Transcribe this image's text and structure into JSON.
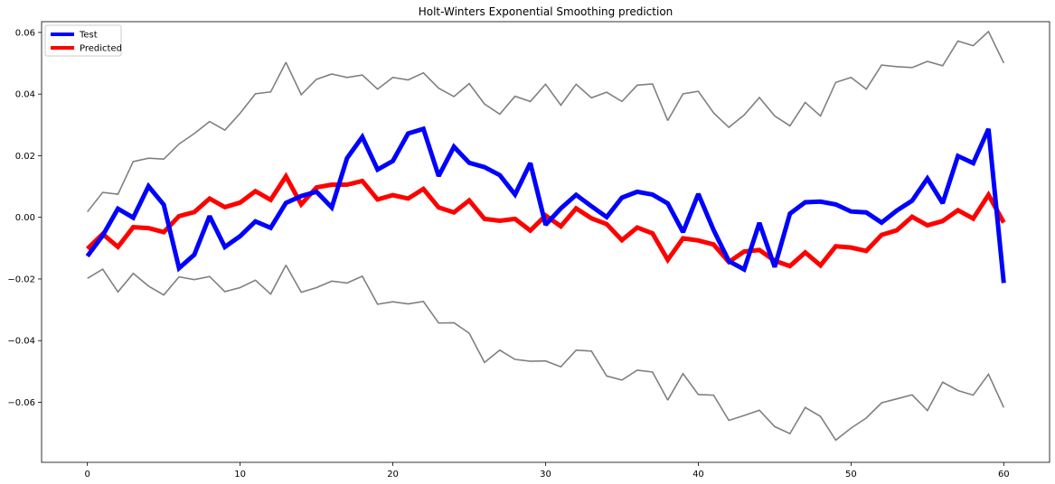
{
  "chart_data": {
    "type": "line",
    "title": "Holt-Winters Exponential Smoothing prediction",
    "xlabel": "",
    "ylabel": "",
    "xlim": [
      -3,
      63
    ],
    "ylim": [
      -0.0795,
      0.0635
    ],
    "xticks": [
      0,
      10,
      20,
      30,
      40,
      50,
      60
    ],
    "xtick_labels": [
      "0",
      "10",
      "20",
      "30",
      "40",
      "50",
      "60"
    ],
    "yticks": [
      -0.06,
      -0.04,
      -0.02,
      0.0,
      0.02,
      0.04,
      0.06
    ],
    "ytick_labels": [
      "−0.06",
      "−0.04",
      "−0.02",
      "0.00",
      "0.02",
      "0.04",
      "0.06"
    ],
    "grid": false,
    "legend": {
      "position": "upper-left",
      "entries": [
        "Test",
        "Predicted"
      ]
    },
    "x": [
      0,
      1,
      2,
      3,
      4,
      5,
      6,
      7,
      8,
      9,
      10,
      11,
      12,
      13,
      14,
      15,
      16,
      17,
      18,
      19,
      20,
      21,
      22,
      23,
      24,
      25,
      26,
      27,
      28,
      29,
      30,
      31,
      32,
      33,
      34,
      35,
      36,
      37,
      38,
      39,
      40,
      41,
      42,
      43,
      44,
      45,
      46,
      47,
      48,
      49,
      50,
      51,
      52,
      53,
      54,
      55,
      56,
      57,
      58,
      59,
      60
    ],
    "series": [
      {
        "name": "Test",
        "color": "#0000ff",
        "values": [
          -0.0126,
          -0.0059,
          0.0028,
          -0.0001,
          0.0101,
          0.0041,
          -0.0165,
          -0.0121,
          0.0004,
          -0.0096,
          -0.0061,
          -0.0013,
          -0.0034,
          0.0047,
          0.0069,
          0.0083,
          0.0032,
          0.0192,
          0.0261,
          0.0155,
          0.0183,
          0.0272,
          0.0287,
          0.0134,
          0.0229,
          0.0177,
          0.0163,
          0.0137,
          0.0074,
          0.0176,
          -0.0024,
          0.0029,
          0.0073,
          0.0036,
          0.0001,
          0.0064,
          0.0083,
          0.0074,
          0.0045,
          -0.0048,
          0.0076,
          -0.0041,
          -0.0142,
          -0.0169,
          -0.0018,
          -0.0161,
          0.0012,
          0.0049,
          0.0051,
          0.0042,
          0.0019,
          0.0016,
          -0.0017,
          0.0022,
          0.0054,
          0.0126,
          0.0046,
          0.0199,
          0.0176,
          0.0287,
          -0.0213
        ]
      },
      {
        "name": "Predicted",
        "color": "#ff0000",
        "values": [
          -0.0102,
          -0.0054,
          -0.0096,
          -0.0032,
          -0.0035,
          -0.0048,
          0.0004,
          0.0017,
          0.0061,
          0.0033,
          0.0048,
          0.0085,
          0.0057,
          0.0133,
          0.0042,
          0.0097,
          0.0106,
          0.0106,
          0.0118,
          0.0058,
          0.0072,
          0.0061,
          0.0092,
          0.0032,
          0.0016,
          0.0055,
          -0.0005,
          -0.0011,
          -0.0005,
          -0.0043,
          0.0006,
          -0.0029,
          0.0029,
          -0.0003,
          -0.0022,
          -0.0074,
          -0.0033,
          -0.0052,
          -0.0138,
          -0.0068,
          -0.0075,
          -0.0088,
          -0.0145,
          -0.0111,
          -0.0106,
          -0.0141,
          -0.0158,
          -0.0114,
          -0.0156,
          -0.0094,
          -0.0098,
          -0.0109,
          -0.0057,
          -0.0042,
          0.0002,
          -0.0026,
          -0.0012,
          0.0023,
          -0.0004,
          0.0073,
          -0.0017
        ]
      },
      {
        "name": "",
        "color": "#808080",
        "values": [
          0.0018,
          0.0081,
          0.0075,
          0.0181,
          0.0192,
          0.0189,
          0.0238,
          0.0272,
          0.0311,
          0.0283,
          0.0338,
          0.0401,
          0.0407,
          0.0503,
          0.0398,
          0.0448,
          0.0465,
          0.0454,
          0.0462,
          0.0416,
          0.0454,
          0.0446,
          0.0469,
          0.0419,
          0.0392,
          0.0434,
          0.0368,
          0.0335,
          0.0393,
          0.0376,
          0.0432,
          0.0364,
          0.0432,
          0.0388,
          0.0406,
          0.0376,
          0.0429,
          0.0433,
          0.0314,
          0.0401,
          0.0409,
          0.0339,
          0.0292,
          0.0332,
          0.0389,
          0.0329,
          0.0297,
          0.0373,
          0.0329,
          0.0438,
          0.0454,
          0.0416,
          0.0494,
          0.0489,
          0.0486,
          0.0506,
          0.0492,
          0.0572,
          0.0557,
          0.0603,
          0.0501
        ]
      },
      {
        "name": "",
        "color": "#808080",
        "values": [
          -0.0198,
          -0.0168,
          -0.0242,
          -0.0182,
          -0.0223,
          -0.0252,
          -0.0193,
          -0.0202,
          -0.0192,
          -0.0241,
          -0.0228,
          -0.0204,
          -0.0249,
          -0.0155,
          -0.0243,
          -0.0228,
          -0.0207,
          -0.0213,
          -0.0191,
          -0.0282,
          -0.0274,
          -0.0281,
          -0.0273,
          -0.0343,
          -0.0342,
          -0.0376,
          -0.0471,
          -0.0431,
          -0.0461,
          -0.0467,
          -0.0466,
          -0.0485,
          -0.0431,
          -0.0434,
          -0.0515,
          -0.0528,
          -0.0496,
          -0.0502,
          -0.0593,
          -0.0507,
          -0.0575,
          -0.0577,
          -0.0659,
          -0.0643,
          -0.0626,
          -0.0679,
          -0.0702,
          -0.0617,
          -0.0646,
          -0.0723,
          -0.0684,
          -0.0651,
          -0.0602,
          -0.0589,
          -0.0576,
          -0.0627,
          -0.0535,
          -0.0562,
          -0.0577,
          -0.0509,
          -0.0617
        ]
      }
    ]
  }
}
